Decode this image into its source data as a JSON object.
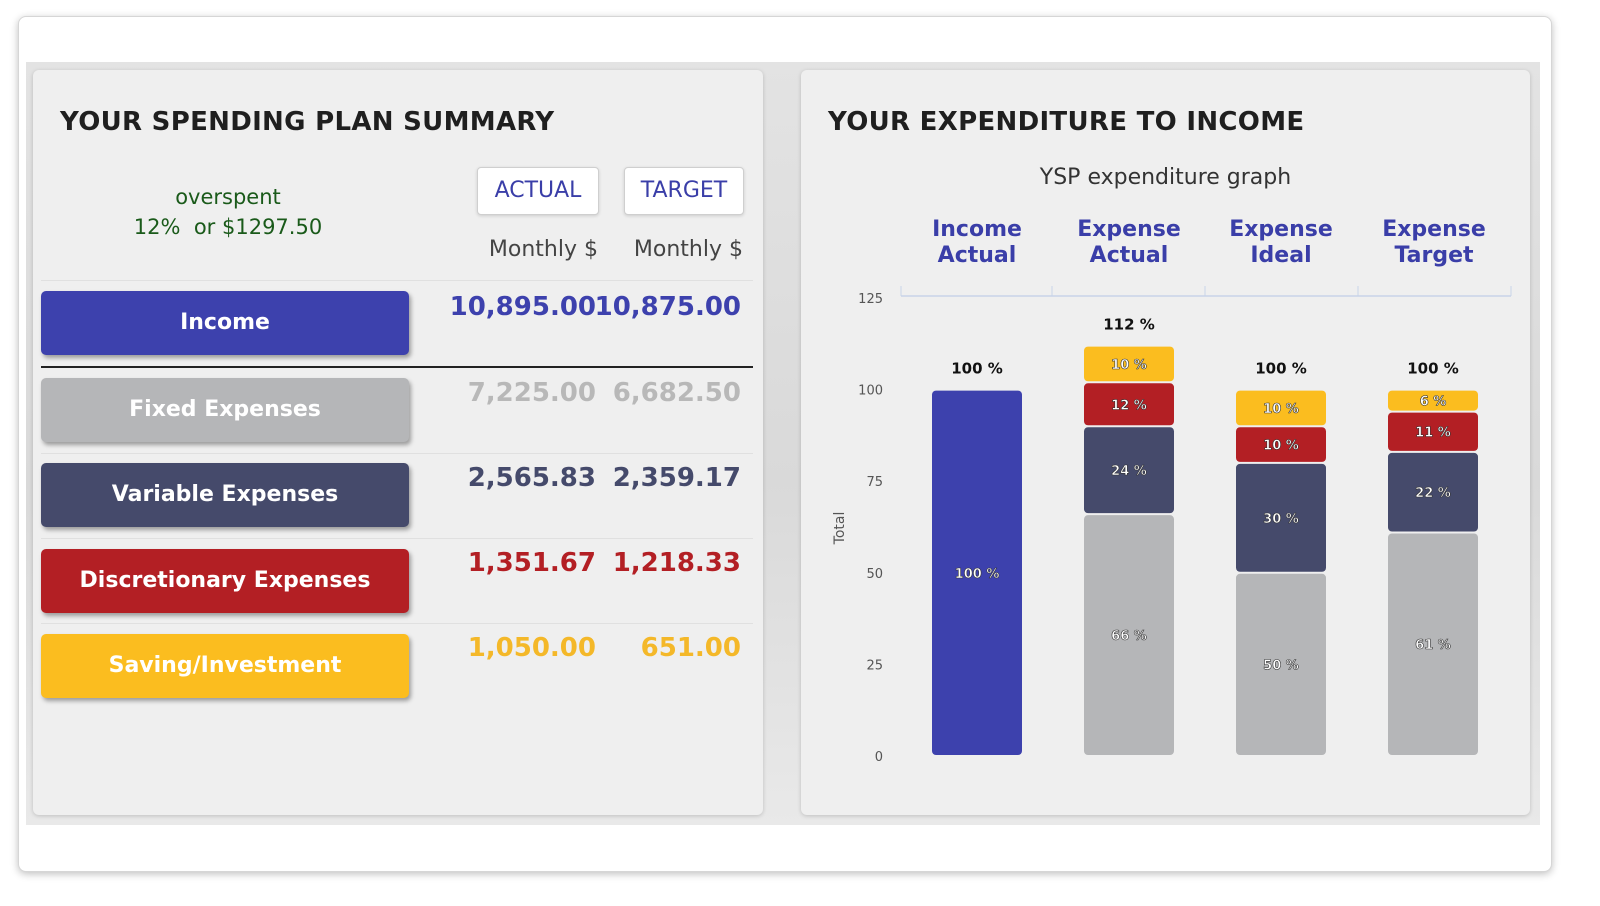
{
  "summary": {
    "title": "YOUR SPENDING PLAN SUMMARY",
    "status_line1": "overspent",
    "status_line2": "12%  or $1297.50",
    "actual_button": "ACTUAL",
    "target_button": "TARGET",
    "col_actual_label": "Monthly $",
    "col_target_label": "Monthly $",
    "rows": [
      {
        "label": "Income",
        "actual": "10,895.00",
        "target": "10,875.00",
        "color": "#3d41ad",
        "value_color": "#3d41ad"
      },
      {
        "label": "Fixed Expenses",
        "actual": "7,225.00",
        "target": "6,682.50",
        "color": "#b5b6b8",
        "value_color": "#b8b8b8"
      },
      {
        "label": "Variable Expenses",
        "actual": "2,565.83",
        "target": "2,359.17",
        "color": "#454a6b",
        "value_color": "#454a6b"
      },
      {
        "label": "Discretionary Expenses",
        "actual": "1,351.67",
        "target": "1,218.33",
        "color": "#b31f24",
        "value_color": "#b31f24"
      },
      {
        "label": "Saving/Investment",
        "actual": "1,050.00",
        "target": "651.00",
        "color": "#fbbd1f",
        "value_color": "#f4b829"
      }
    ]
  },
  "expenditure": {
    "title": "YOUR EXPENDITURE TO INCOME"
  },
  "chart_data": {
    "type": "bar",
    "stacked": true,
    "title": "YSP expenditure graph",
    "ylabel": "Total",
    "ylim": [
      0,
      125
    ],
    "yticks": [
      0,
      25,
      50,
      75,
      100,
      125
    ],
    "categories": [
      {
        "line1": "Income",
        "line2": "Actual",
        "total_label": "100 %"
      },
      {
        "line1": "Expense",
        "line2": "Actual",
        "total_label": "112 %"
      },
      {
        "line1": "Expense",
        "line2": "Ideal",
        "total_label": "100 %"
      },
      {
        "line1": "Expense",
        "line2": "Target",
        "total_label": "100 %"
      }
    ],
    "series": [
      {
        "name": "Income",
        "color": "#3d41ad",
        "values": [
          100,
          0,
          0,
          0
        ],
        "labels": [
          "100 %",
          "",
          "",
          ""
        ]
      },
      {
        "name": "Fixed Expenses",
        "color": "#b5b6b8",
        "values": [
          0,
          66,
          50,
          61
        ],
        "labels": [
          "",
          "66 %",
          "50 %",
          "61 %"
        ]
      },
      {
        "name": "Variable Expenses",
        "color": "#454a6b",
        "values": [
          0,
          24,
          30,
          22
        ],
        "labels": [
          "",
          "24 %",
          "30 %",
          "22 %"
        ]
      },
      {
        "name": "Discretionary Expenses",
        "color": "#b31f24",
        "values": [
          0,
          12,
          10,
          11
        ],
        "labels": [
          "",
          "12 %",
          "10 %",
          "11 %"
        ]
      },
      {
        "name": "Saving/Investment",
        "color": "#fbbd1f",
        "values": [
          0,
          10,
          10,
          6
        ],
        "labels": [
          "",
          "10 %",
          "10 %",
          "6 %"
        ]
      }
    ]
  }
}
